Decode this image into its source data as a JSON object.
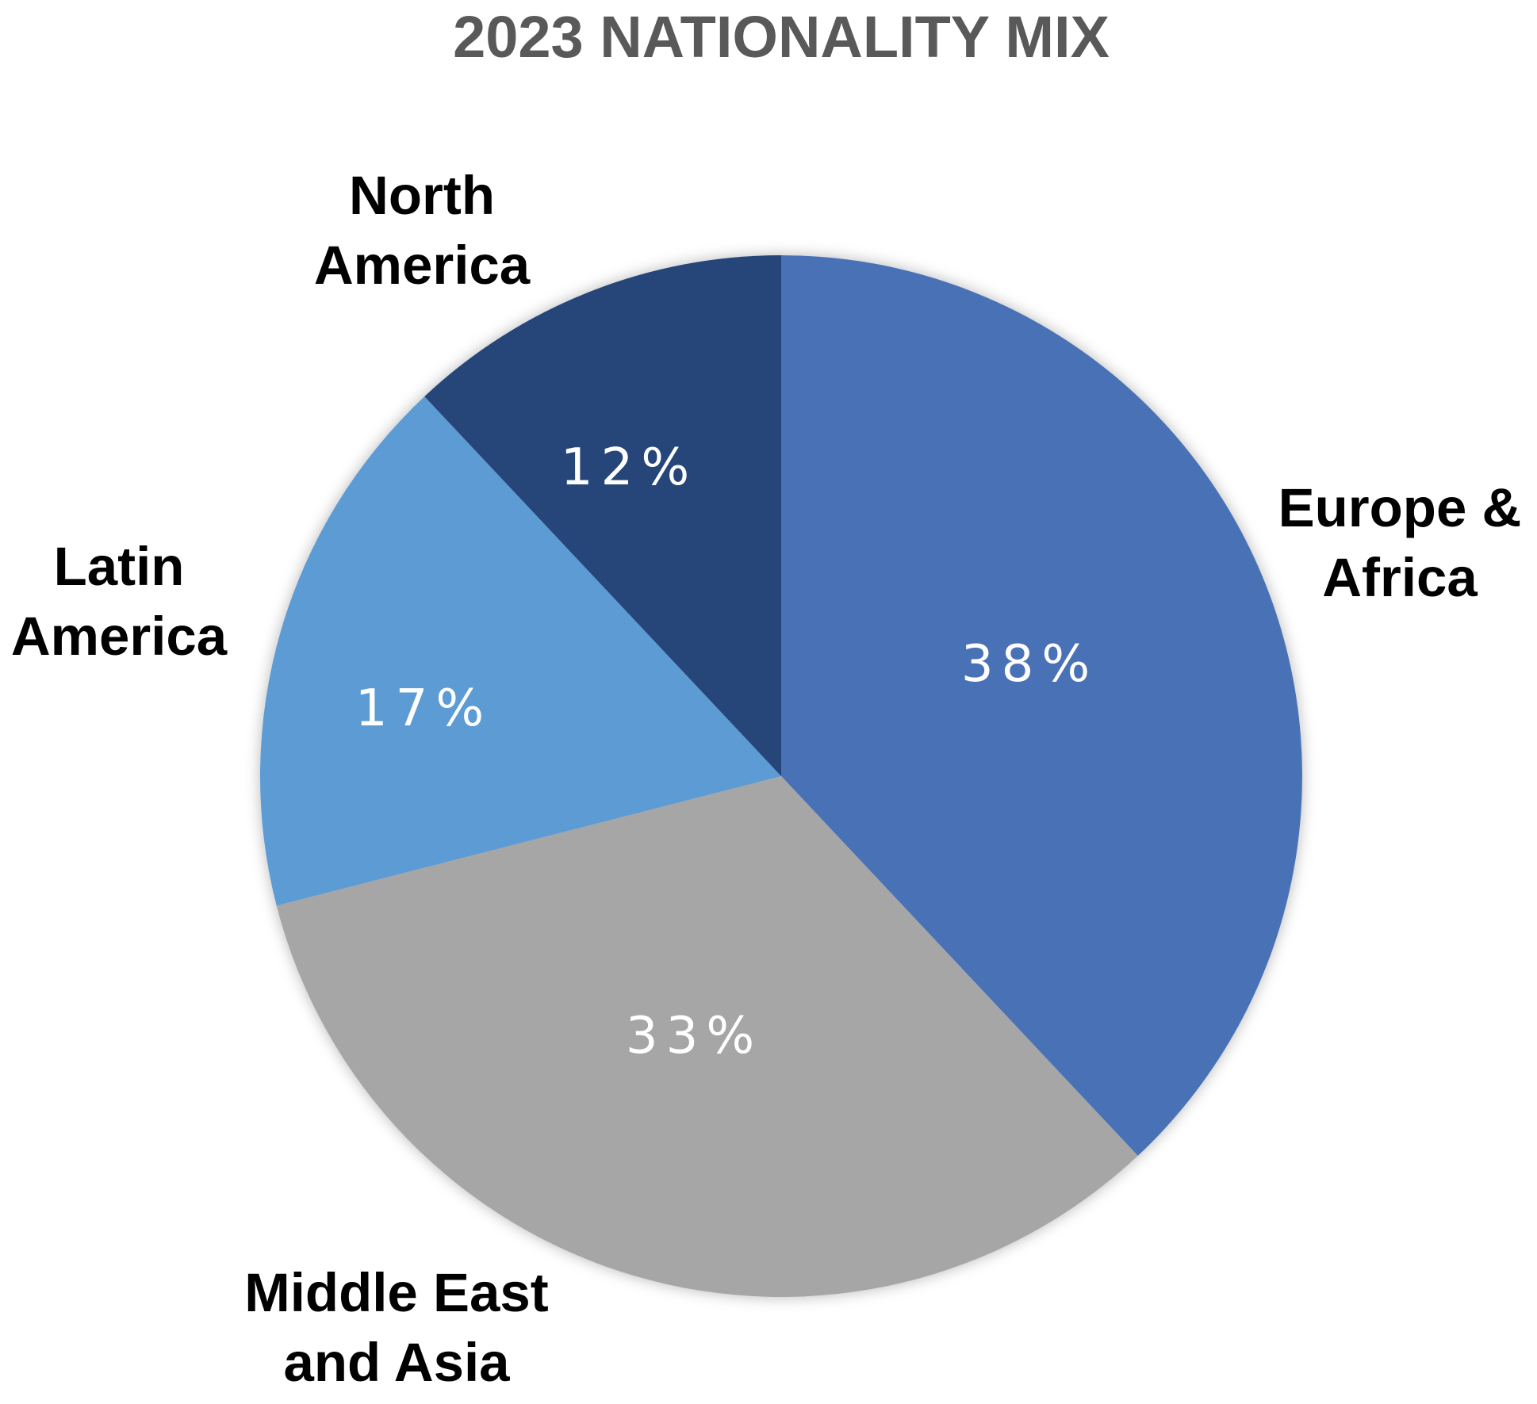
{
  "chart_data": {
    "type": "pie",
    "title": "2023 NATIONALITY MIX",
    "start_angle_deg": 0,
    "direction": "clockwise",
    "slices": [
      {
        "name": "Europe & Africa",
        "label_lines": [
          "Europe &",
          "Africa"
        ],
        "value": 38,
        "value_label": "38%",
        "color": "#4A72B6"
      },
      {
        "name": "Middle East and Asia",
        "label_lines": [
          "Middle East",
          "and Asia"
        ],
        "value": 33,
        "value_label": "33%",
        "color": "#A6A6A6"
      },
      {
        "name": "Latin America",
        "label_lines": [
          "Latin",
          "America"
        ],
        "value": 17,
        "value_label": "17%",
        "color": "#5B9BD4"
      },
      {
        "name": "North America",
        "label_lines": [
          "North",
          "America"
        ],
        "value": 12,
        "value_label": "12%",
        "color": "#254479"
      }
    ],
    "legend": "none"
  }
}
